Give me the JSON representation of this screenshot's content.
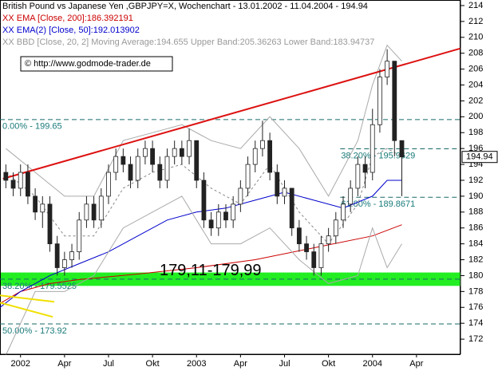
{
  "chart_data": {
    "type": "candlestick",
    "title": "British Pound vs Japanese Yen ,GBPJPY=X, Wochenchart - 13.01.2002 - 11.04.2004 - 194.94",
    "legend": [
      {
        "text": "XX EMA [Close, 200]:186.392191",
        "color": "#cc0000"
      },
      {
        "text": "XX EMA(2) [Close, 50]:192.013902",
        "color": "#0000cc"
      },
      {
        "text": "XX BBD [Close, 20, 2] Moving Average:194.655 Upper Band:205.36263 Lower Band:183.94737",
        "color": "#999999"
      }
    ],
    "source": "© http://www.godmode-trader.de",
    "x": [
      -1,
      -0.5,
      0,
      0.5,
      1,
      1.5,
      2,
      2.5,
      3,
      3.5,
      4,
      4.5,
      5,
      5.5,
      6,
      6.5,
      7,
      7.5,
      8,
      8.5,
      9,
      9.5,
      10,
      10.5,
      11,
      11.5,
      12,
      12.5,
      13,
      13.5,
      14,
      14.5,
      15,
      15.5,
      16,
      16.5,
      17,
      17.5,
      18,
      18.5,
      19,
      19.5,
      20,
      20.5,
      21,
      21.5,
      22,
      22.5,
      23,
      23.5,
      24,
      24.5,
      25,
      25.5,
      26
    ],
    "open": [
      193,
      192,
      191,
      193,
      190,
      188,
      189,
      184,
      181,
      182,
      183,
      187,
      189,
      187,
      190,
      193,
      195,
      194,
      192,
      195,
      196,
      194,
      192,
      195,
      196,
      195,
      197,
      192,
      187,
      186,
      188,
      187,
      189,
      191,
      194,
      196,
      197,
      193,
      190,
      191,
      186,
      184,
      183,
      181,
      184,
      185,
      187,
      189,
      191,
      194,
      193,
      199,
      205,
      207,
      197
    ],
    "high": [
      194,
      193,
      194,
      194,
      191,
      190,
      190,
      185,
      183,
      184,
      188,
      190,
      190,
      191,
      194,
      196,
      196,
      195,
      196,
      197,
      197,
      195,
      196,
      197,
      197,
      198.5,
      197,
      193,
      188,
      189,
      189,
      190,
      192,
      195,
      197,
      199.5,
      198,
      194,
      192,
      191,
      187,
      185,
      184,
      185,
      186,
      188,
      190,
      192,
      195,
      195,
      201,
      206,
      208.5,
      207,
      197
    ],
    "low": [
      191,
      190,
      190,
      189,
      187,
      186,
      183,
      180,
      180,
      181,
      182,
      186,
      186,
      186,
      189,
      192,
      193,
      191,
      191,
      194,
      193,
      191,
      191,
      194,
      194,
      194,
      191,
      186,
      185,
      185,
      186,
      186,
      188,
      190,
      193,
      195,
      192,
      189,
      189,
      185,
      183,
      182,
      180,
      180,
      183,
      184,
      186,
      188,
      190,
      191,
      192,
      198,
      204,
      195,
      190
    ],
    "close": [
      192,
      191,
      193,
      190,
      188,
      189,
      184,
      181,
      182,
      183,
      187,
      189,
      187,
      190,
      193,
      195,
      194,
      192,
      195,
      196,
      194,
      192,
      195,
      196,
      195,
      197,
      192,
      187,
      186,
      188,
      187,
      189,
      191,
      194,
      196,
      197,
      193,
      190,
      191,
      186,
      184,
      183,
      181,
      184,
      185,
      187,
      189,
      191,
      194,
      193,
      199,
      205,
      207,
      197,
      194.94
    ],
    "up_color": "#ffffff",
    "down_color": "#222222",
    "indicators": [
      {
        "color": "#cc0000",
        "dash": false,
        "x": [
          -1.4,
          0,
          2,
          4,
          8,
          12,
          16,
          20,
          24,
          26
        ],
        "values": [
          176.5,
          178,
          179,
          179.5,
          180.2,
          181,
          182,
          183.5,
          185,
          186.4
        ]
      },
      {
        "color": "#0000cc",
        "dash": false,
        "x": [
          -1.4,
          0,
          2,
          4,
          6,
          8,
          10,
          12,
          14,
          16,
          18,
          20,
          22,
          24,
          25,
          26
        ],
        "values": [
          176,
          178,
          180,
          181.5,
          183,
          185,
          187,
          188,
          188.5,
          189.5,
          190.5,
          189.5,
          188.5,
          190,
          192,
          192
        ]
      },
      {
        "color": "#aaaaaa",
        "dash": false,
        "x": [
          -1,
          1,
          3,
          5,
          7,
          9,
          11,
          13,
          15,
          17,
          19,
          21,
          23,
          24,
          25,
          26
        ],
        "values": [
          196,
          193,
          190,
          190,
          197,
          198,
          199,
          197,
          196,
          200,
          196,
          190,
          197,
          204,
          209,
          207
        ]
      },
      {
        "color": "#aaaaaa",
        "dash": false,
        "x": [
          -1,
          1,
          3,
          5,
          7,
          9,
          11,
          13,
          15,
          17,
          19,
          21,
          23,
          24,
          25,
          26
        ],
        "values": [
          170,
          178,
          178,
          180,
          186,
          188,
          190,
          184,
          184,
          186,
          182,
          179,
          180,
          186,
          181,
          184
        ]
      },
      {
        "color": "#888888",
        "dash": true,
        "x": [
          -1,
          1,
          3,
          5,
          7,
          9,
          11,
          13,
          15,
          17,
          19,
          21,
          23,
          24,
          25,
          26
        ],
        "values": [
          193,
          190,
          185,
          185,
          191,
          193,
          194,
          191,
          189,
          194,
          188,
          184,
          189,
          195,
          196,
          195
        ]
      },
      {
        "color": "#dd1111",
        "dash": false,
        "width": 2,
        "x": [
          -1.2,
          30
        ],
        "values": [
          192.2,
          208.6
        ]
      },
      {
        "color": "#f0e000",
        "dash": false,
        "width": 2,
        "x": [
          -1.4,
          2.3
        ],
        "values": [
          177.5,
          176.7
        ]
      },
      {
        "color": "#f0e000",
        "dash": false,
        "width": 2,
        "x": [
          -1.4,
          2.2
        ],
        "values": [
          176.6,
          174.8
        ]
      }
    ],
    "fib_lines": [
      {
        "label": "0.00% - 199.65",
        "value": 199.65,
        "x": [
          -1.4,
          30
        ]
      },
      {
        "label": "38.20% - 195.9629",
        "value": 195.9629,
        "x": [
          21.8,
          30
        ]
      },
      {
        "label": "61.80% - 189.8671",
        "value": 189.8671,
        "x": [
          21.8,
          30
        ]
      },
      {
        "label": "38.20% - 179.5525",
        "value": 179.5525,
        "x": [
          -1.4,
          30
        ]
      },
      {
        "label": "50.00% - 173.92",
        "value": 173.92,
        "x": [
          -1.4,
          30
        ]
      }
    ],
    "band": {
      "label": "179,11-179,99",
      "values": [
        179.11,
        179.99
      ],
      "color": "#22ee22"
    },
    "xlim": [
      -1.4,
      30.0
    ],
    "ylim": [
      170.1,
      214.7
    ],
    "yticks": [
      172,
      174,
      176,
      178,
      180,
      182,
      184,
      186,
      188,
      190,
      192,
      194,
      196,
      198,
      200,
      202,
      204,
      206,
      208,
      210,
      212,
      214
    ],
    "xticks": [
      {
        "value": 0,
        "label": "2002"
      },
      {
        "value": 3,
        "label": "Apr"
      },
      {
        "value": 6,
        "label": "Jul"
      },
      {
        "value": 9,
        "label": "Okt"
      },
      {
        "value": 12,
        "label": "2003"
      },
      {
        "value": 15,
        "label": "Apr"
      },
      {
        "value": 18,
        "label": "Jul"
      },
      {
        "value": 21,
        "label": "Okt"
      },
      {
        "value": 24,
        "label": "2004"
      },
      {
        "value": 27,
        "label": "Apr"
      }
    ],
    "grid": false
  }
}
